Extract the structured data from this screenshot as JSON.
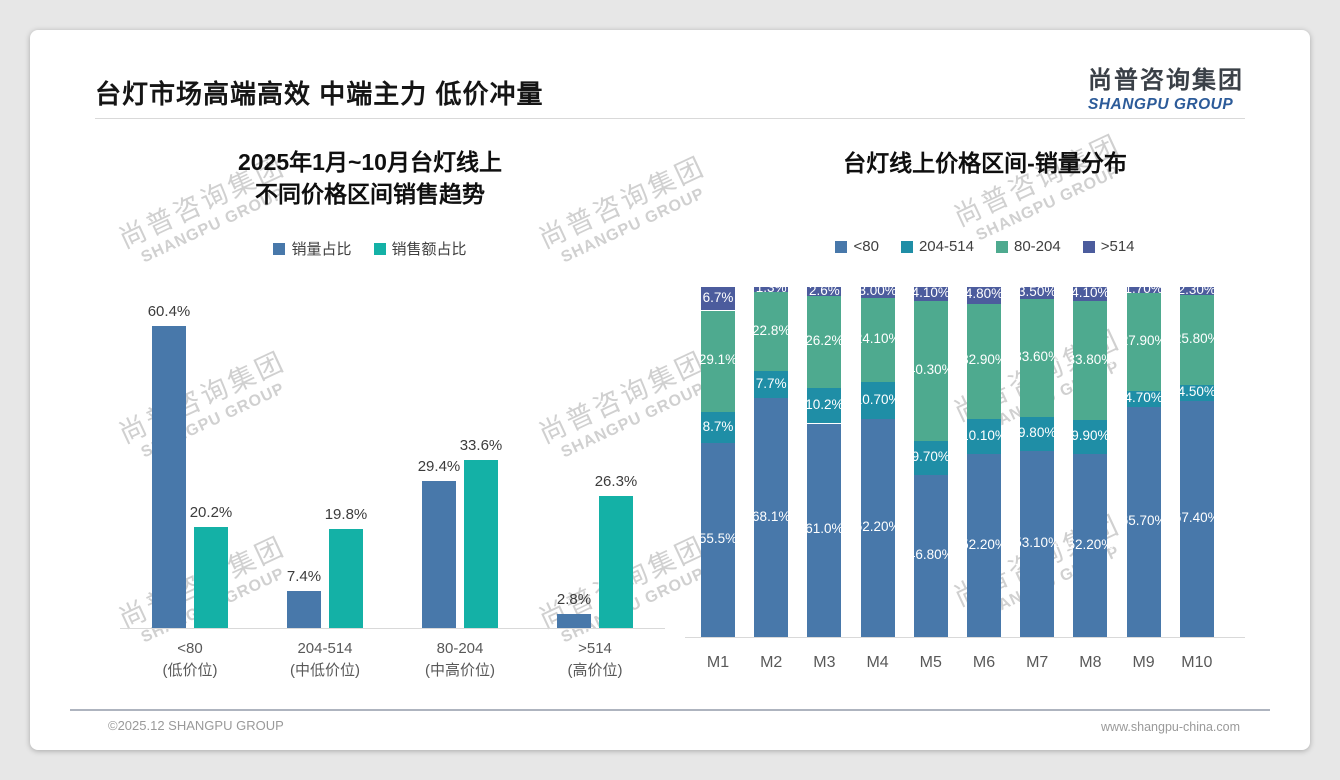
{
  "page": {
    "title": "台灯市场高端高效 中端主力 低价冲量",
    "logo": {
      "cn": "尚普咨询集团",
      "en": "SHANGPU GROUP"
    },
    "watermark": {
      "cn": "尚普咨询集团",
      "en": "SHANGPU GROUP"
    },
    "footer": {
      "left": "©2025.12 SHANGPU GROUP",
      "right": "www.shangpu-china.com"
    }
  },
  "colors": {
    "blue": "#4878AA",
    "teal_bright": "#14B1A6",
    "teal_dark": "#1F8EA6",
    "green": "#4EAA8F",
    "indigo": "#4C5C9D",
    "axis": "#d9d9d9",
    "logo_blue": "#2c5b99"
  },
  "chart_data": [
    {
      "type": "bar",
      "title": "2025年1月~10月台灯线上 不同价格区间销售趋势",
      "title_lines": [
        "2025年1月~10月台灯线上",
        "不同价格区间销售趋势"
      ],
      "categories": [
        {
          "range": "<80",
          "tier": "(低价位)"
        },
        {
          "range": "204-514",
          "tier": "(中低价位)"
        },
        {
          "range": "80-204",
          "tier": "(中高价位)"
        },
        {
          "range": ">514",
          "tier": "(高价位)"
        }
      ],
      "ylim": [
        0,
        65
      ],
      "grid": false,
      "legend_position": "top",
      "series": [
        {
          "name": "销量占比",
          "color": "#4878AA",
          "values": [
            60.4,
            7.4,
            29.4,
            2.8
          ],
          "labels": [
            "60.4%",
            "7.4%",
            "29.4%",
            "2.8%"
          ]
        },
        {
          "name": "销售额占比",
          "color": "#14B1A6",
          "values": [
            20.2,
            19.8,
            33.6,
            26.3
          ],
          "labels": [
            "20.2%",
            "19.8%",
            "33.6%",
            "26.3%"
          ]
        }
      ]
    },
    {
      "type": "bar",
      "subtype": "stacked-100",
      "title": "台灯线上价格区间-销量分布",
      "categories": [
        "M1",
        "M2",
        "M3",
        "M4",
        "M5",
        "M6",
        "M7",
        "M8",
        "M9",
        "M10"
      ],
      "ylim": [
        0,
        100
      ],
      "grid": false,
      "legend_position": "top",
      "stack_order_bottom_to_top": [
        "<80",
        "204-514",
        "80-204",
        ">514"
      ],
      "series": [
        {
          "name": "<80",
          "color": "#4878AA",
          "values": [
            55.5,
            68.1,
            61.0,
            62.2,
            46.8,
            52.2,
            53.1,
            52.2,
            65.7,
            67.4
          ],
          "labels": [
            "55.5%",
            "68.1%",
            "61.0%",
            "62.20%",
            "46.80%",
            "52.20%",
            "53.10%",
            "52.20%",
            "65.70%",
            "67.40%"
          ]
        },
        {
          "name": "204-514",
          "color": "#1F8EA6",
          "values": [
            8.7,
            7.7,
            10.2,
            10.7,
            9.7,
            10.1,
            9.8,
            9.9,
            4.7,
            4.5
          ],
          "labels": [
            "8.7%",
            "7.7%",
            "10.2%",
            "10.70%",
            "9.70%",
            "10.10%",
            "9.80%",
            "9.90%",
            "4.70%",
            "4.50%"
          ]
        },
        {
          "name": "80-204",
          "color": "#4EAA8F",
          "values": [
            29.1,
            22.8,
            26.2,
            24.1,
            40.3,
            32.9,
            33.6,
            33.8,
            27.9,
            25.8
          ],
          "labels": [
            "29.1%",
            "22.8%",
            "26.2%",
            "24.10%",
            "40.30%",
            "32.90%",
            "33.60%",
            "33.80%",
            "27.90%",
            "25.80%"
          ]
        },
        {
          "name": ">514",
          "color": "#4C5C9D",
          "values": [
            6.7,
            1.3,
            2.6,
            3.0,
            4.1,
            4.8,
            3.5,
            4.1,
            1.7,
            2.3
          ],
          "labels": [
            "6.7%",
            "1.3%",
            "2.6%",
            "3.00%",
            "4.10%",
            "4.80%",
            "3.50%",
            "4.10%",
            "1.70%",
            "2.30%"
          ]
        }
      ]
    }
  ]
}
